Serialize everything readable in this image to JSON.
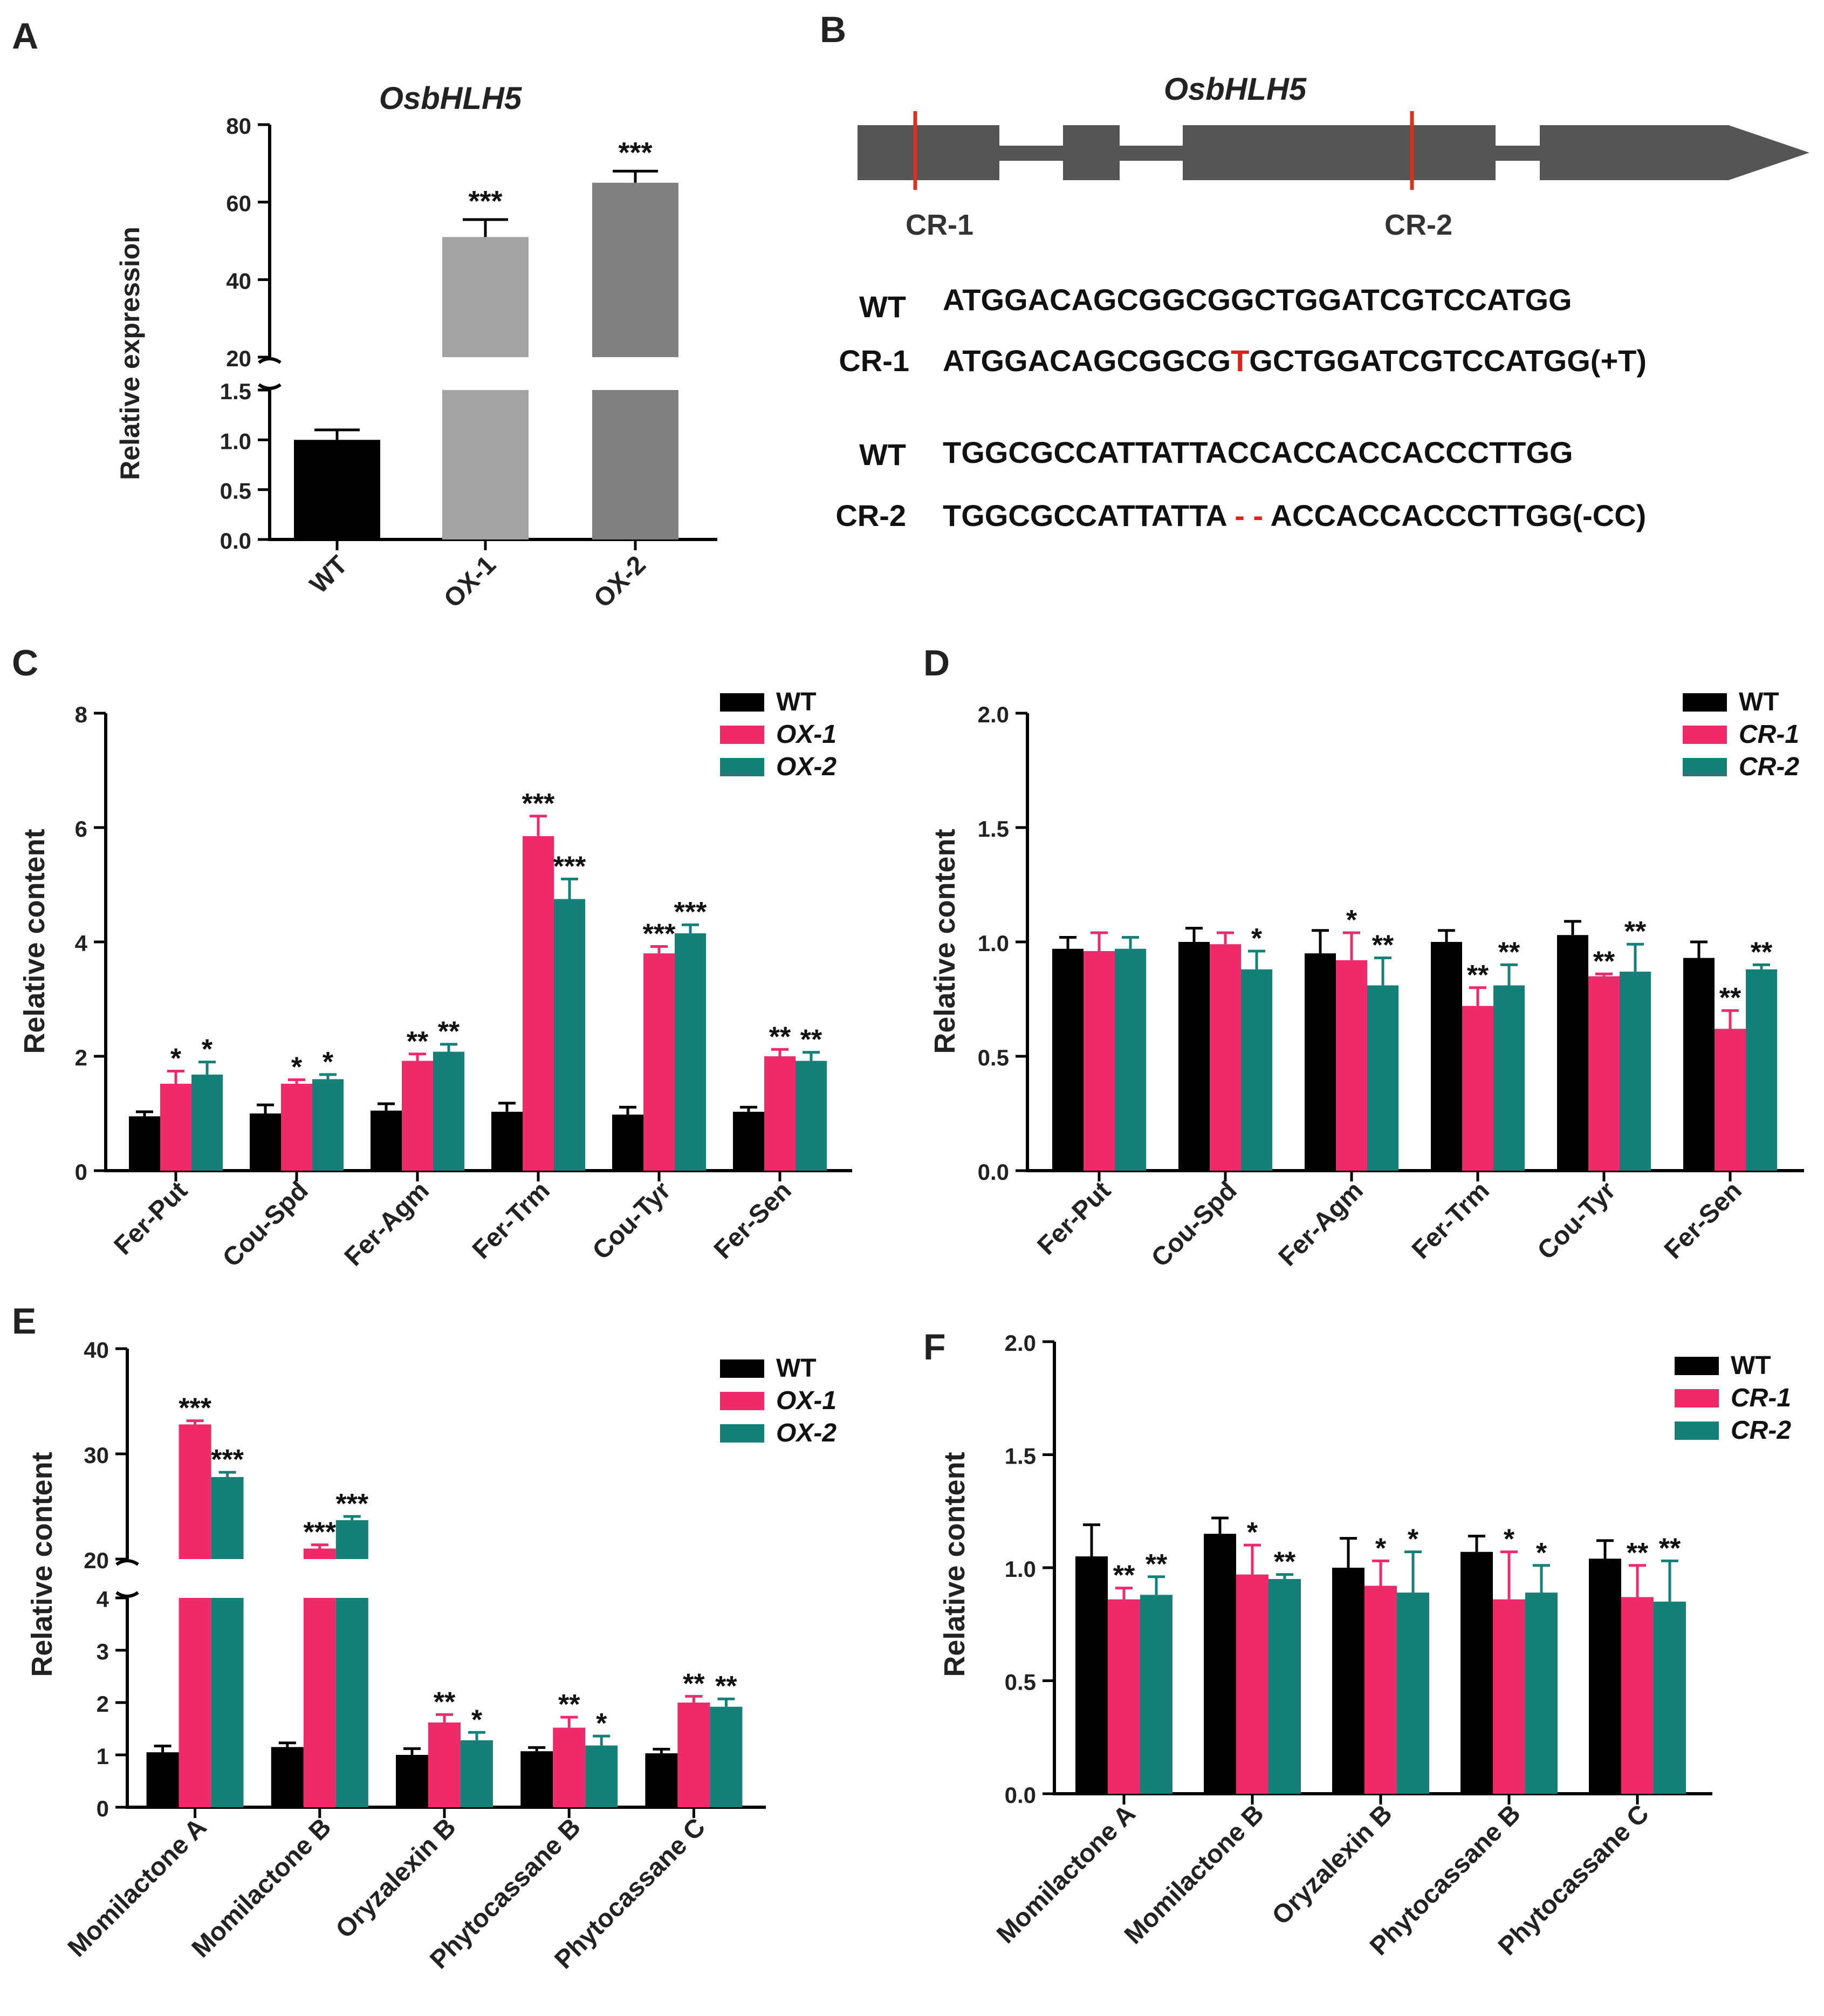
{
  "colors": {
    "wt": "#000000",
    "ox1": "#EE2A6A",
    "cr1": "#EE2A6A",
    "ox2": "#148078",
    "cr2": "#148078",
    "panelA_wt": "#000000",
    "panelA_ox1": "#A3A3A3",
    "panelA_ox2": "#808080",
    "gene": "#555555",
    "site": "#D9301F",
    "mutation": "#E0201E",
    "text": "#222222"
  },
  "panel_labels": {
    "a": "A",
    "b": "B",
    "c": "C",
    "d": "D",
    "e": "E",
    "f": "F"
  },
  "panelB": {
    "gene_title": "OsbHLH5",
    "site1": "CR-1",
    "site2": "CR-2",
    "seq": [
      {
        "label": "WT",
        "pre": "ATGGACAGCGGCGGCTGGATCGTCCATGG",
        "mut": "",
        "post": ""
      },
      {
        "label": "CR-1",
        "pre": "ATGGACAGCGGCG",
        "mut": "T",
        "post": "GCTGGATCGTCCATGG(+T)"
      },
      {
        "label": "WT",
        "pre": "TGGCGCCATTATTACCACCACCACCCTTGG",
        "mut": "",
        "post": ""
      },
      {
        "label": "CR-2",
        "pre": "TGGCGCCATTATTA ",
        "mut": "- -",
        "post": " ACCACCACCCTTGG(-CC)"
      }
    ]
  },
  "chart_data": [
    {
      "panel": "A",
      "type": "bar",
      "title": "OsbHLH5",
      "ylabel": "Relative expression",
      "categories": [
        "WT",
        "OX-1",
        "OX-2"
      ],
      "values": [
        1.0,
        51.0,
        65.0
      ],
      "errors": [
        0.1,
        4.5,
        3.0
      ],
      "significance": [
        "",
        "***",
        "***"
      ],
      "broken_axis": {
        "lower": [
          0,
          1.5
        ],
        "upper": [
          20,
          80
        ]
      },
      "yticks_lower": [
        "0.0",
        "0.5",
        "1.0",
        "1.5"
      ],
      "yticks_upper": [
        "20",
        "40",
        "60",
        "80"
      ]
    },
    {
      "panel": "C",
      "type": "bar",
      "ylabel": "Relative content",
      "categories": [
        "Fer-Put",
        "Cou-Spd",
        "Fer-Agm",
        "Fer-Trm",
        "Cou-Tyr",
        "Fer-Sen"
      ],
      "ylim": [
        0,
        8
      ],
      "yticks": [
        "0",
        "2",
        "4",
        "6",
        "8"
      ],
      "legend_position": "top-right",
      "series": [
        {
          "name": "WT",
          "values": [
            0.95,
            1.0,
            1.05,
            1.03,
            0.98,
            1.03
          ],
          "errors": [
            0.08,
            0.15,
            0.12,
            0.15,
            0.13,
            0.08
          ],
          "sig": [
            "",
            "",
            "",
            "",
            "",
            ""
          ]
        },
        {
          "name": "OX-1",
          "values": [
            1.52,
            1.52,
            1.92,
            5.85,
            3.8,
            2.0
          ],
          "errors": [
            0.22,
            0.07,
            0.12,
            0.35,
            0.12,
            0.12
          ],
          "sig": [
            "*",
            "*",
            "**",
            "***",
            "***",
            "**"
          ]
        },
        {
          "name": "OX-2",
          "values": [
            1.68,
            1.6,
            2.08,
            4.75,
            4.15,
            1.92
          ],
          "errors": [
            0.22,
            0.08,
            0.13,
            0.35,
            0.15,
            0.15
          ],
          "sig": [
            "*",
            "*",
            "**",
            "***",
            "***",
            "**"
          ]
        }
      ]
    },
    {
      "panel": "D",
      "type": "bar",
      "ylabel": "Relative content",
      "categories": [
        "Fer-Put",
        "Cou-Spd",
        "Fer-Agm",
        "Fer-Trm",
        "Cou-Tyr",
        "Fer-Sen"
      ],
      "ylim": [
        0,
        2
      ],
      "yticks": [
        "0.0",
        "0.5",
        "1.0",
        "1.5",
        "2.0"
      ],
      "legend_position": "top-right",
      "series": [
        {
          "name": "WT",
          "values": [
            0.97,
            1.0,
            0.95,
            1.0,
            1.03,
            0.93
          ],
          "errors": [
            0.05,
            0.06,
            0.1,
            0.05,
            0.06,
            0.07
          ],
          "sig": [
            "",
            "",
            "",
            "",
            "",
            ""
          ]
        },
        {
          "name": "CR-1",
          "values": [
            0.96,
            0.99,
            0.92,
            0.72,
            0.85,
            0.62
          ],
          "errors": [
            0.08,
            0.05,
            0.12,
            0.08,
            0.01,
            0.08
          ],
          "sig": [
            "",
            "",
            "*",
            "**",
            "**",
            "**"
          ]
        },
        {
          "name": "CR-2",
          "values": [
            0.97,
            0.88,
            0.81,
            0.81,
            0.87,
            0.88
          ],
          "errors": [
            0.05,
            0.08,
            0.12,
            0.09,
            0.12,
            0.02
          ],
          "sig": [
            "",
            "*",
            "**",
            "**",
            "**",
            "**"
          ]
        }
      ]
    },
    {
      "panel": "E",
      "type": "bar",
      "ylabel": "Relative content",
      "categories": [
        "Momilactone A",
        "Momilactone B",
        "Oryzalexin B",
        "Phytocassane B",
        "Phytocassane C"
      ],
      "broken_axis": {
        "lower": [
          0,
          4
        ],
        "upper": [
          20,
          40
        ]
      },
      "yticks_lower": [
        "0",
        "1",
        "2",
        "3",
        "4"
      ],
      "yticks_upper": [
        "20",
        "30",
        "40"
      ],
      "legend_position": "top-right",
      "series": [
        {
          "name": "WT",
          "values": [
            1.05,
            1.15,
            1.0,
            1.07,
            1.03
          ],
          "errors": [
            0.12,
            0.08,
            0.12,
            0.07,
            0.08
          ],
          "sig": [
            "",
            "",
            "",
            "",
            ""
          ]
        },
        {
          "name": "OX-1",
          "values": [
            32.8,
            21.0,
            1.62,
            1.52,
            2.0
          ],
          "errors": [
            0.35,
            0.35,
            0.15,
            0.2,
            0.12
          ],
          "sig": [
            "***",
            "***",
            "**",
            "**",
            "**"
          ]
        },
        {
          "name": "OX-2",
          "values": [
            27.8,
            23.7,
            1.28,
            1.18,
            1.92
          ],
          "errors": [
            0.45,
            0.35,
            0.15,
            0.18,
            0.15
          ],
          "sig": [
            "***",
            "***",
            "*",
            "*",
            "**"
          ]
        }
      ]
    },
    {
      "panel": "F",
      "type": "bar",
      "ylabel": "Relative content",
      "categories": [
        "Momilactone A",
        "Momilactone B",
        "Oryzalexin B",
        "Phytocassane B",
        "Phytocassane C"
      ],
      "ylim": [
        0,
        2
      ],
      "yticks": [
        "0.0",
        "0.5",
        "1.0",
        "1.5",
        "2.0"
      ],
      "legend_position": "top-right",
      "series": [
        {
          "name": "WT",
          "values": [
            1.05,
            1.15,
            1.0,
            1.07,
            1.04
          ],
          "errors": [
            0.14,
            0.07,
            0.13,
            0.07,
            0.08
          ],
          "sig": [
            "",
            "",
            "",
            "",
            ""
          ]
        },
        {
          "name": "CR-1",
          "values": [
            0.86,
            0.97,
            0.92,
            0.86,
            0.87
          ],
          "errors": [
            0.05,
            0.13,
            0.11,
            0.21,
            0.14
          ],
          "sig": [
            "**",
            "*",
            "*",
            "*",
            "**"
          ]
        },
        {
          "name": "CR-2",
          "values": [
            0.88,
            0.95,
            0.89,
            0.89,
            0.85
          ],
          "errors": [
            0.08,
            0.02,
            0.18,
            0.12,
            0.18
          ],
          "sig": [
            "**",
            "**",
            "*",
            "*",
            "**"
          ]
        }
      ]
    }
  ]
}
